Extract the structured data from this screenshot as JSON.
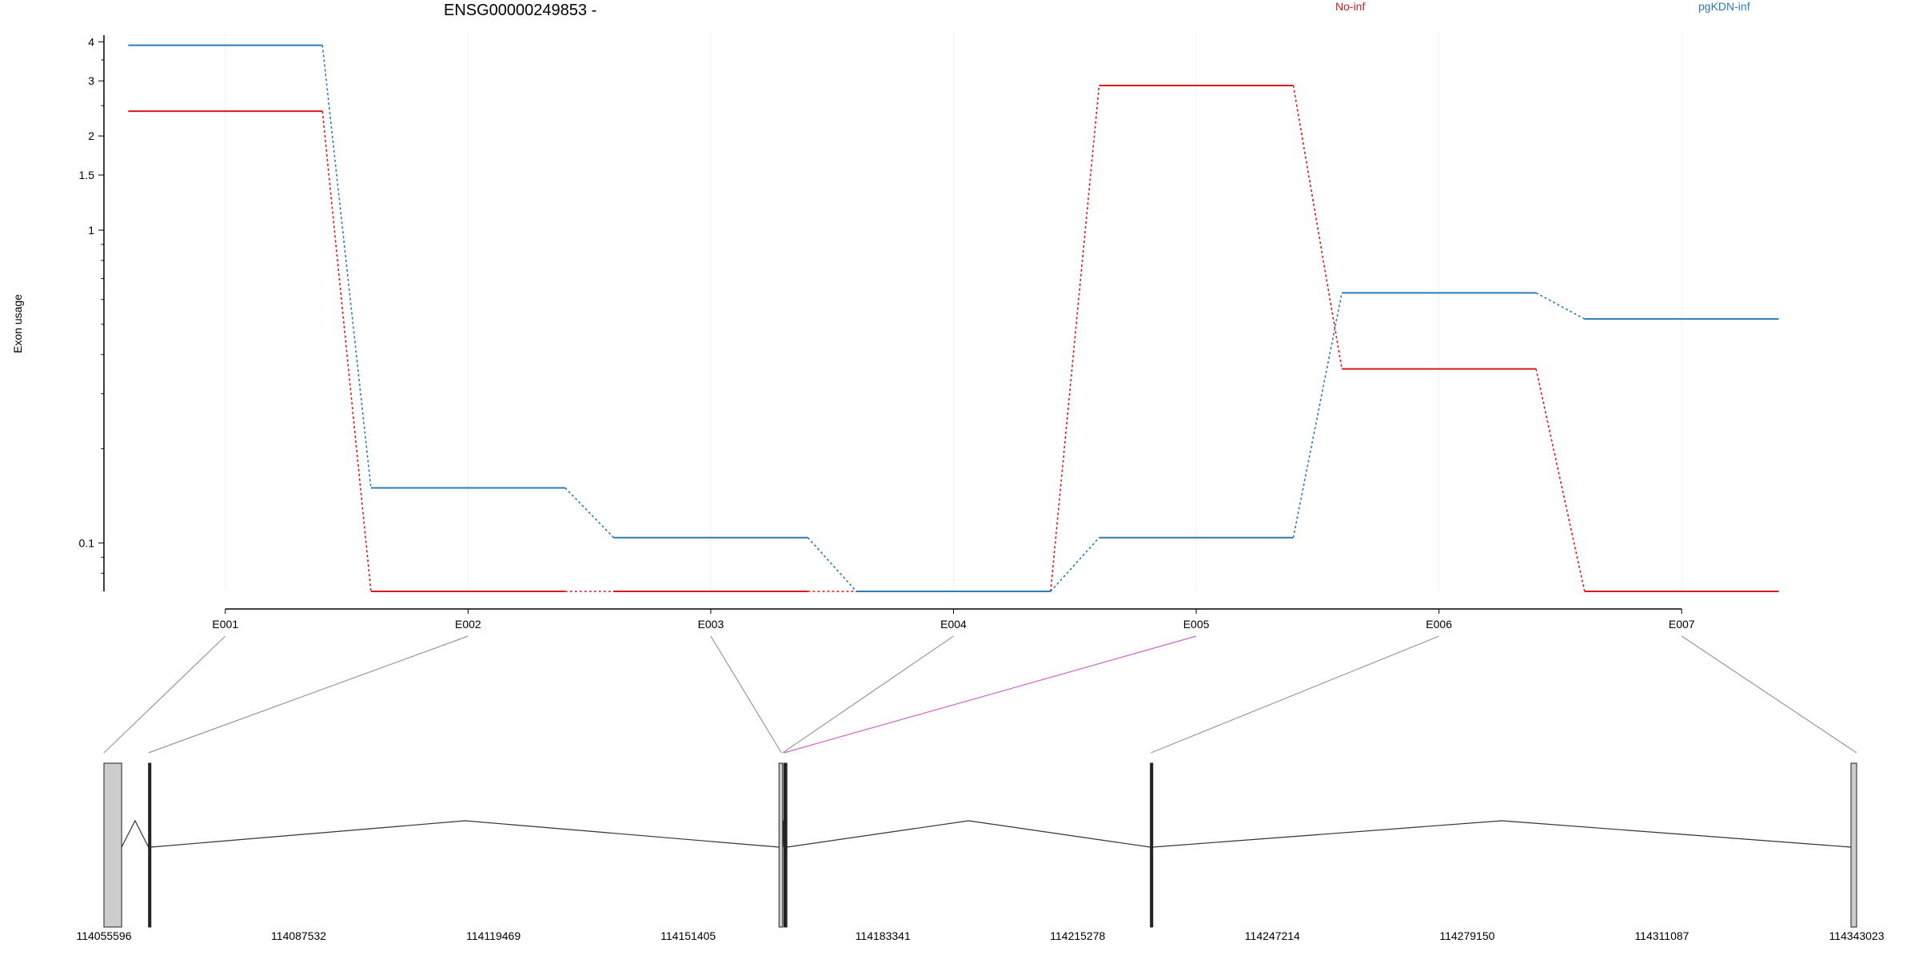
{
  "chart_data": {
    "type": "line",
    "title": "ENSG00000249853 -",
    "ylabel": "Exon usage",
    "xlabel": "",
    "y_scale": "log",
    "y_ticks": [
      0.1,
      1,
      1.5,
      2,
      3,
      4
    ],
    "y_tick_labels": [
      "0.1",
      "1",
      "1.5",
      "2",
      "3",
      "4"
    ],
    "ylim": [
      0.07,
      4.3
    ],
    "legend_position": "top-right",
    "grid": "vertical-light",
    "categories": [
      "E001",
      "E002",
      "E003",
      "E004",
      "E005",
      "E006",
      "E007"
    ],
    "series": [
      {
        "name": "No-inf",
        "color": "#d7191c",
        "values": [
          2.4,
          0.07,
          0.07,
          0.07,
          2.9,
          0.36,
          0.07
        ]
      },
      {
        "name": "pgKDN-inf",
        "color": "#2c7bb6",
        "values": [
          3.9,
          0.15,
          0.104,
          0.07,
          0.104,
          0.63,
          0.52
        ]
      }
    ],
    "gene_model": {
      "coordinate_labels": [
        "114055596",
        "114087532",
        "114119469",
        "114151405",
        "114183341",
        "114215278",
        "114247214",
        "114279150",
        "114311087",
        "114343023"
      ],
      "range": [
        114055596,
        114343023
      ],
      "exons": [
        {
          "start": 114055596,
          "end": 114058500
        },
        {
          "start": 114062900,
          "end": 114063300
        },
        {
          "start": 114166300,
          "end": 114166900
        },
        {
          "start": 114167100,
          "end": 114167600
        },
        {
          "start": 114227200,
          "end": 114227600
        },
        {
          "start": 114342100,
          "end": 114343023
        }
      ],
      "exon_map": [
        {
          "exon": "E001",
          "gene_pos": 114055596,
          "color": "#999999"
        },
        {
          "exon": "E002",
          "gene_pos": 114062900,
          "color": "#999999"
        },
        {
          "exon": "E003",
          "gene_pos": 114166700,
          "color": "#999999"
        },
        {
          "exon": "E004",
          "gene_pos": 114166900,
          "color": "#999999"
        },
        {
          "exon": "E005",
          "gene_pos": 114167100,
          "color": "#cc66cc"
        },
        {
          "exon": "E006",
          "gene_pos": 114227300,
          "color": "#999999"
        },
        {
          "exon": "E007",
          "gene_pos": 114343023,
          "color": "#999999"
        }
      ]
    }
  }
}
